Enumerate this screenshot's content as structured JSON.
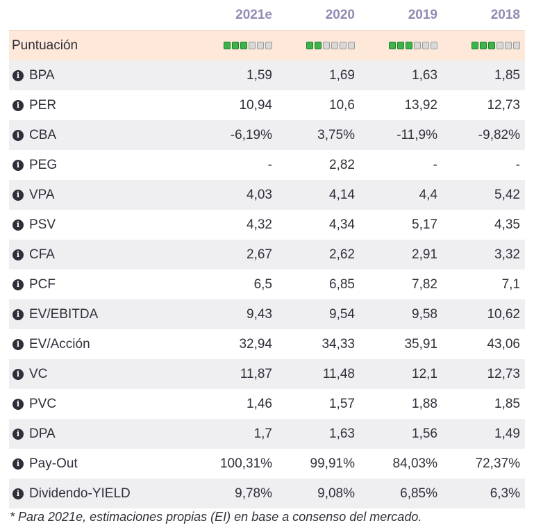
{
  "header": {
    "columns": [
      "2021e",
      "2020",
      "2019",
      "2018"
    ]
  },
  "score_row": {
    "label": "Puntuación",
    "scores": [
      3,
      2,
      3,
      3
    ],
    "max": 6,
    "on_color": "#3bb54a",
    "off_color": "#d8d8d8"
  },
  "rows": [
    {
      "label": "BPA",
      "values": [
        "1,59",
        "1,69",
        "1,63",
        "1,85"
      ]
    },
    {
      "label": "PER",
      "values": [
        "10,94",
        "10,6",
        "13,92",
        "12,73"
      ]
    },
    {
      "label": "CBA",
      "values": [
        "-6,19%",
        "3,75%",
        "-11,9%",
        "-9,82%"
      ]
    },
    {
      "label": "PEG",
      "values": [
        "-",
        "2,82",
        "-",
        "-"
      ]
    },
    {
      "label": "VPA",
      "values": [
        "4,03",
        "4,14",
        "4,4",
        "5,42"
      ]
    },
    {
      "label": "PSV",
      "values": [
        "4,32",
        "4,34",
        "5,17",
        "4,35"
      ]
    },
    {
      "label": "CFA",
      "values": [
        "2,67",
        "2,62",
        "2,91",
        "3,32"
      ]
    },
    {
      "label": "PCF",
      "values": [
        "6,5",
        "6,85",
        "7,82",
        "7,1"
      ]
    },
    {
      "label": "EV/EBITDA",
      "values": [
        "9,43",
        "9,54",
        "9,58",
        "10,62"
      ]
    },
    {
      "label": "EV/Acción",
      "values": [
        "32,94",
        "34,33",
        "35,91",
        "43,06"
      ]
    },
    {
      "label": "VC",
      "values": [
        "11,87",
        "11,48",
        "12,1",
        "12,73"
      ]
    },
    {
      "label": "PVC",
      "values": [
        "1,46",
        "1,57",
        "1,88",
        "1,85"
      ]
    },
    {
      "label": "DPA",
      "values": [
        "1,7",
        "1,63",
        "1,56",
        "1,49"
      ]
    },
    {
      "label": "Pay-Out",
      "values": [
        "100,31%",
        "99,91%",
        "84,03%",
        "72,37%"
      ]
    },
    {
      "label": "Dividendo-YIELD",
      "values": [
        "9,78%",
        "9,08%",
        "6,85%",
        "6,3%"
      ]
    }
  ],
  "footnote": "* Para 2021e, estimaciones propias (EI) en base a consenso del mercado."
}
